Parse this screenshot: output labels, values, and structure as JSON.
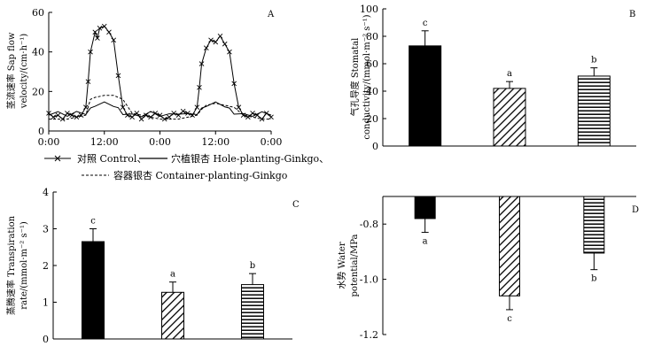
{
  "colors": {
    "ink": "#000000",
    "paper": "#ffffff"
  },
  "chart_data": [
    {
      "id": "A",
      "type": "line",
      "panel_label": "A",
      "ylabel_lines": [
        "茎流速率 Sap flow",
        "velocity/(cm·h⁻¹)"
      ],
      "x_ticks": [
        "0:00",
        "12:00",
        "0:00",
        "12:00",
        "0:00"
      ],
      "x_range_hours": [
        0,
        48
      ],
      "ylim": [
        0,
        60
      ],
      "y_ticks": [
        0,
        20,
        40,
        60
      ],
      "legend": [
        {
          "style": "marker-x",
          "label": "对照 Control、"
        },
        {
          "style": "solid",
          "label": "穴植银杏 Hole-planting-Ginkgo、"
        },
        {
          "style": "dashed",
          "label": "容器银杏 Container-planting-Ginkgo"
        }
      ],
      "series": [
        {
          "name": "Control",
          "style": "marker-x",
          "x": [
            0,
            1,
            2,
            3,
            4,
            5,
            6,
            7,
            8,
            8.5,
            9,
            10,
            10.5,
            11,
            12,
            13,
            14,
            15,
            16,
            17,
            18,
            19,
            20,
            21,
            22,
            23,
            24,
            25,
            26,
            27,
            28,
            29,
            30,
            31,
            32,
            32.5,
            33,
            34,
            35,
            36,
            37,
            38,
            39,
            40,
            41,
            42,
            43,
            44,
            45,
            46,
            47,
            48
          ],
          "y": [
            9,
            7,
            8,
            6,
            9,
            8,
            7,
            8,
            12,
            25,
            40,
            50,
            47,
            52,
            53,
            50,
            46,
            28,
            12,
            8,
            7,
            9,
            6,
            8,
            7,
            9,
            8,
            6,
            7,
            9,
            8,
            10,
            9,
            8,
            12,
            22,
            34,
            42,
            46,
            45,
            48,
            44,
            40,
            24,
            12,
            8,
            7,
            9,
            8,
            6,
            9,
            7
          ]
        },
        {
          "name": "Hole-planting-Ginkgo",
          "style": "solid",
          "x": [
            0,
            2,
            4,
            6,
            8,
            9,
            10,
            12,
            14,
            15,
            16,
            18,
            20,
            22,
            24,
            26,
            28,
            30,
            32,
            33,
            34,
            36,
            38,
            39,
            40,
            42,
            44,
            46,
            48
          ],
          "y": [
            8,
            9,
            8,
            9,
            9,
            11,
            13,
            14,
            13,
            11,
            9,
            8,
            8,
            9,
            8,
            8,
            9,
            8,
            9,
            11,
            13,
            14,
            13,
            11,
            9,
            8,
            8,
            9,
            8
          ],
          "wiggle": [
            0,
            0.8,
            -0.6,
            0.9,
            -0.7,
            0.6,
            -0.5,
            0.7,
            -0.6,
            0.8,
            -0.7,
            0.6,
            -0.8,
            0.9,
            -0.6,
            0.7,
            -0.5,
            0.8,
            -0.7,
            0.6,
            -0.6,
            0.7,
            -0.8,
            0.6,
            -0.5,
            0.8,
            -0.6,
            0.7,
            0
          ]
        },
        {
          "name": "Container-planting-Ginkgo",
          "style": "dashed",
          "x": [
            0,
            4,
            8,
            9,
            10,
            12,
            14,
            16,
            18,
            22,
            24,
            28,
            32,
            33,
            34,
            36,
            38,
            40,
            42,
            46,
            48
          ],
          "y": [
            6,
            6,
            8,
            16,
            17,
            18,
            18,
            16,
            9,
            7,
            6,
            6,
            8,
            11,
            13,
            14,
            13,
            12,
            8,
            6,
            6
          ]
        }
      ]
    },
    {
      "id": "B",
      "type": "bar",
      "panel_label": "B",
      "ylabel_lines": [
        "气孔导度 Stomatal",
        "conductivity/(mmol·m⁻² s⁻¹)"
      ],
      "ylim": [
        0,
        100
      ],
      "y_ticks": [
        0,
        20,
        40,
        60,
        80,
        100
      ],
      "bars": [
        {
          "value": 73,
          "error": 11,
          "letter": "c",
          "fill": "black"
        },
        {
          "value": 42,
          "error": 5,
          "letter": "a",
          "fill": "diagonal"
        },
        {
          "value": 51,
          "error": 6,
          "letter": "b",
          "fill": "horizontal"
        }
      ]
    },
    {
      "id": "C",
      "type": "bar",
      "panel_label": "C",
      "ylabel_lines": [
        "蒸腾速率 Transpiration",
        "rate/(mmol·m⁻² s⁻¹)"
      ],
      "ylim": [
        0,
        4
      ],
      "y_ticks": [
        0,
        1,
        2,
        3,
        4
      ],
      "bars": [
        {
          "value": 2.65,
          "error": 0.35,
          "letter": "c",
          "fill": "black"
        },
        {
          "value": 1.27,
          "error": 0.28,
          "letter": "a",
          "fill": "diagonal"
        },
        {
          "value": 1.48,
          "error": 0.3,
          "letter": "b",
          "fill": "horizontal"
        }
      ]
    },
    {
      "id": "D",
      "type": "bar",
      "panel_label": "D",
      "ylabel_lines": [
        "水势 Water",
        "potential/MPa"
      ],
      "ylim": [
        -1.2,
        -0.7
      ],
      "y_ticks": [
        -0.8,
        -1.0,
        -1.2
      ],
      "y_tick_labels": [
        "-0.8",
        "-1.0",
        "-1.2"
      ],
      "bars": [
        {
          "value": -0.78,
          "error": 0.05,
          "letter": "a",
          "fill": "black"
        },
        {
          "value": -1.06,
          "error": 0.05,
          "letter": "c",
          "fill": "diagonal"
        },
        {
          "value": -0.905,
          "error": 0.06,
          "letter": "b",
          "fill": "horizontal"
        }
      ]
    }
  ]
}
